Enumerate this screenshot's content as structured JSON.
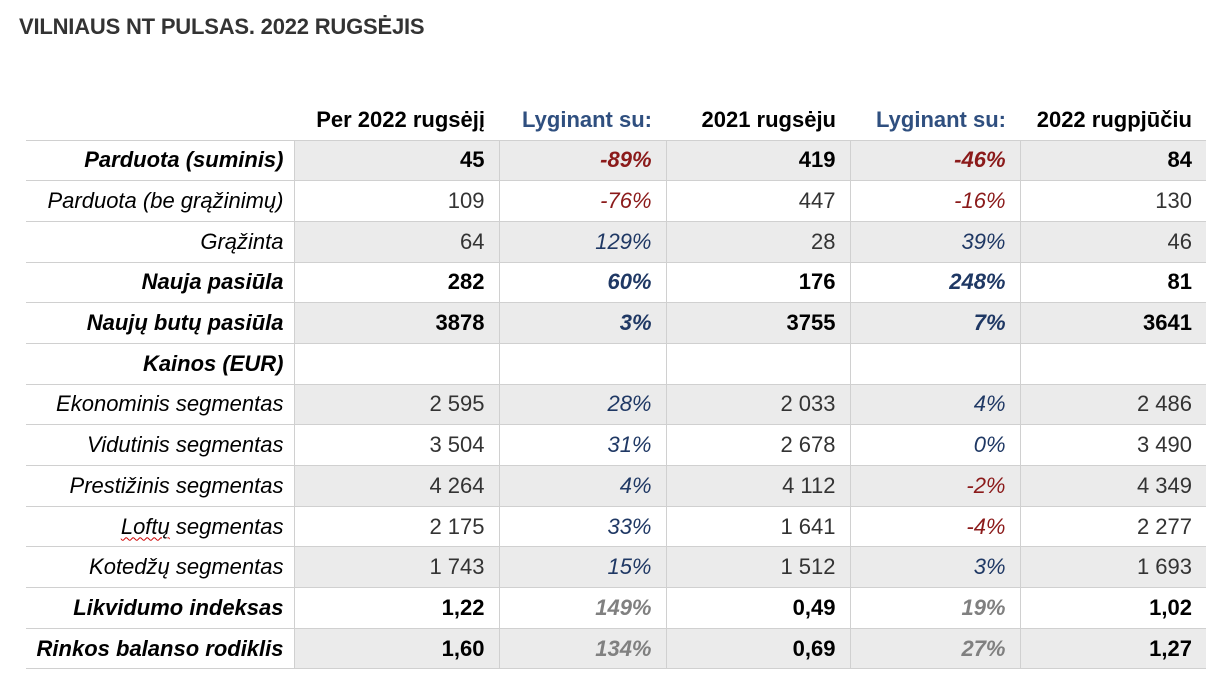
{
  "title": "VILNIAUS NT PULSAS. 2022 RUGSĖJIS",
  "headers": [
    "",
    "Per 2022 rugsėjį",
    "Lyginant su:",
    "2021 rugsėju",
    "Lyginant su:",
    "2022 rugpjūčiu"
  ],
  "colors": {
    "negative": "#8b1a1a",
    "positive": "#1f3864",
    "neutral_gray": "#808080",
    "header_compare": "#2f4f7f",
    "shade": "#ebebeb"
  },
  "rows": [
    {
      "label": "Parduota (suminis)",
      "cur": "45",
      "pct1": "-89%",
      "y2021": "419",
      "pct2": "-46%",
      "aug": "84"
    },
    {
      "label": "Parduota (be grąžinimų)",
      "cur": "109",
      "pct1": "-76%",
      "y2021": "447",
      "pct2": "-16%",
      "aug": "130"
    },
    {
      "label": "Grąžinta",
      "cur": "64",
      "pct1": "129%",
      "y2021": "28",
      "pct2": "39%",
      "aug": "46"
    },
    {
      "label": "Nauja pasiūla",
      "cur": "282",
      "pct1": "60%",
      "y2021": "176",
      "pct2": "248%",
      "aug": "81"
    },
    {
      "label": "Naujų butų pasiūla",
      "cur": "3878",
      "pct1": "3%",
      "y2021": "3755",
      "pct2": "7%",
      "aug": "3641"
    },
    {
      "label": "Kainos (EUR)",
      "cur": "",
      "pct1": "",
      "y2021": "",
      "pct2": "",
      "aug": ""
    },
    {
      "label": "Ekonominis segmentas",
      "cur": "2 595",
      "pct1": "28%",
      "y2021": "2 033",
      "pct2": "4%",
      "aug": "2 486"
    },
    {
      "label": "Vidutinis segmentas",
      "cur": "3 504",
      "pct1": "31%",
      "y2021": "2 678",
      "pct2": "0%",
      "aug": "3 490"
    },
    {
      "label": "Prestižinis segmentas",
      "cur": "4 264",
      "pct1": "4%",
      "y2021": "4 112",
      "pct2": "-2%",
      "aug": "4 349"
    },
    {
      "label_a": "Loftų",
      "label_b": " segmentas",
      "cur": "2 175",
      "pct1": "33%",
      "y2021": "1 641",
      "pct2": "-4%",
      "aug": "2 277"
    },
    {
      "label": "Kotedžų segmentas",
      "cur": "1 743",
      "pct1": "15%",
      "y2021": "1 512",
      "pct2": "3%",
      "aug": "1 693"
    },
    {
      "label": "Likvidumo indeksas",
      "cur": "1,22",
      "pct1": "149%",
      "y2021": "0,49",
      "pct2": "19%",
      "aug": "1,02"
    },
    {
      "label": "Rinkos balanso rodiklis",
      "cur": "1,60",
      "pct1": "134%",
      "y2021": "0,69",
      "pct2": "27%",
      "aug": "1,27"
    }
  ]
}
